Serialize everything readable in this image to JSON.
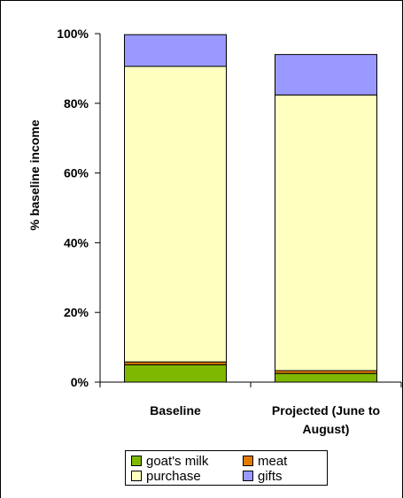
{
  "chart_data": {
    "type": "bar",
    "stacked": true,
    "title": "",
    "xlabel": "",
    "ylabel": "% baseline income",
    "ylim": [
      0,
      100
    ],
    "y_ticks": [
      "0%",
      "20%",
      "40%",
      "60%",
      "80%",
      "100%"
    ],
    "categories": [
      "Baseline",
      "Projected (June to August)"
    ],
    "category_label_lines": [
      [
        "Baseline"
      ],
      [
        "Projected (June to",
        "August)"
      ]
    ],
    "series": [
      {
        "name": "goat's milk",
        "color": "#7fb800",
        "values": [
          5.0,
          2.5
        ]
      },
      {
        "name": "meat",
        "color": "#e07b00",
        "values": [
          0.8,
          0.8
        ]
      },
      {
        "name": "purchase",
        "color": "#ffffc0",
        "values": [
          84.8,
          79.1
        ]
      },
      {
        "name": "gifts",
        "color": "#9999ff",
        "values": [
          9.1,
          11.6
        ]
      }
    ],
    "legend": {
      "position": "bottom",
      "items": [
        "goat's milk",
        "meat",
        "purchase",
        "gifts"
      ]
    },
    "grid": false
  }
}
